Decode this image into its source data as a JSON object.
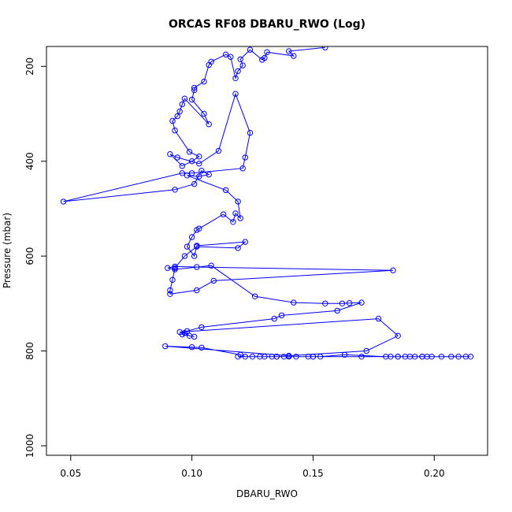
{
  "chart_data": {
    "type": "line",
    "title": "ORCAS RF08 DBARU_RWO (Log)",
    "xlabel": "DBARU_RWO",
    "ylabel": "Pressure (mbar)",
    "xlim": [
      0.04,
      0.222
    ],
    "ylim": [
      1020,
      158
    ],
    "y_inverted": true,
    "x_ticks": [
      0.05,
      0.1,
      0.15,
      0.2
    ],
    "x_tick_labels": [
      "0.05",
      "0.10",
      "0.15",
      "0.20"
    ],
    "y_ticks": [
      200,
      400,
      600,
      800,
      1000
    ],
    "y_tick_labels": [
      "200",
      "400",
      "600",
      "800",
      "1000"
    ],
    "grid": false,
    "marker": "open-circle",
    "series_color": "#0000ff",
    "series": [
      {
        "x": [
          0.155,
          0.14,
          0.142,
          0.131,
          0.13,
          0.129,
          0.124,
          0.12,
          0.121,
          0.119,
          0.118,
          0.116,
          0.114,
          0.108,
          0.107,
          0.105,
          0.101,
          0.101,
          0.1,
          0.105,
          0.107,
          0.097,
          0.096,
          0.095,
          0.094,
          0.092,
          0.093,
          0.099,
          0.103,
          0.1,
          0.096,
          0.091,
          0.094,
          0.103,
          0.111,
          0.118,
          0.124,
          0.122,
          0.121,
          0.1,
          0.096,
          0.047,
          0.093,
          0.101,
          0.104,
          0.107,
          0.103,
          0.098,
          0.114,
          0.119,
          0.12,
          0.118,
          0.117,
          0.113,
          0.103,
          0.102,
          0.1,
          0.098,
          0.101,
          0.102,
          0.122,
          0.119,
          0.102,
          0.097,
          0.093,
          0.092,
          0.091,
          0.091,
          0.102,
          0.109,
          0.183,
          0.102,
          0.093,
          0.09,
          0.093,
          0.108,
          0.126,
          0.142,
          0.155,
          0.162,
          0.165,
          0.17,
          0.16,
          0.137,
          0.134,
          0.104,
          0.098,
          0.096,
          0.101,
          0.099,
          0.097,
          0.095,
          0.177,
          0.185,
          0.172,
          0.14,
          0.089,
          0.1,
          0.104,
          0.12,
          0.122,
          0.125,
          0.13,
          0.133,
          0.135,
          0.138,
          0.14,
          0.143,
          0.148,
          0.15,
          0.153,
          0.163,
          0.18,
          0.182,
          0.185,
          0.188,
          0.19,
          0.192,
          0.195,
          0.197,
          0.199,
          0.203,
          0.207,
          0.21,
          0.213,
          0.215,
          0.195,
          0.185,
          0.17,
          0.15,
          0.135,
          0.128,
          0.119
        ],
        "y": [
          160,
          168,
          178,
          170,
          182,
          186,
          165,
          185,
          198,
          210,
          225,
          180,
          175,
          190,
          197,
          232,
          245,
          250,
          270,
          300,
          322,
          268,
          280,
          295,
          305,
          315,
          335,
          380,
          390,
          400,
          410,
          385,
          392,
          405,
          378,
          258,
          340,
          392,
          415,
          425,
          425,
          485,
          460,
          448,
          420,
          428,
          432,
          430,
          461,
          485,
          520,
          510,
          528,
          512,
          542,
          545,
          560,
          580,
          600,
          578,
          570,
          583,
          580,
          600,
          625,
          650,
          672,
          680,
          672,
          652,
          630,
          623,
          622,
          625,
          628,
          620,
          685,
          698,
          700,
          700,
          699,
          698,
          715,
          725,
          732,
          750,
          758,
          765,
          770,
          768,
          762,
          760,
          732,
          768,
          800,
          810,
          790,
          792,
          793,
          808,
          812,
          812,
          812,
          812,
          812,
          812,
          812,
          812,
          812,
          812,
          812,
          808,
          812,
          812,
          812,
          812,
          812,
          812,
          812,
          812,
          812,
          812,
          812,
          812,
          812,
          812,
          812,
          812,
          812,
          812,
          812,
          812,
          812
        ]
      }
    ]
  }
}
